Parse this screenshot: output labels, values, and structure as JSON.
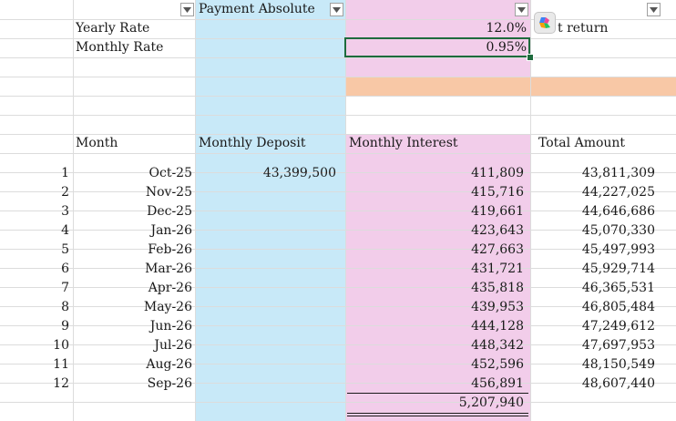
{
  "header": {
    "col_b_title": "Payment Absolute",
    "col_e_partial": "t return"
  },
  "labels": {
    "yearly_rate": "Yearly Rate",
    "monthly_rate": "Monthly Rate"
  },
  "rates": {
    "yearly": "12.0%",
    "monthly": "0.95%"
  },
  "table": {
    "headers": {
      "month": "Month",
      "monthly_deposit": "Monthly Deposit",
      "monthly_interest": "Monthly Interest",
      "total_amount": "Total Amount"
    },
    "rows": [
      {
        "n": "1",
        "month": "Oct-25",
        "deposit": "43,399,500",
        "interest": "411,809",
        "total": "43,811,309"
      },
      {
        "n": "2",
        "month": "Nov-25",
        "deposit": "",
        "interest": "415,716",
        "total": "44,227,025"
      },
      {
        "n": "3",
        "month": "Dec-25",
        "deposit": "",
        "interest": "419,661",
        "total": "44,646,686"
      },
      {
        "n": "4",
        "month": "Jan-26",
        "deposit": "",
        "interest": "423,643",
        "total": "45,070,330"
      },
      {
        "n": "5",
        "month": "Feb-26",
        "deposit": "",
        "interest": "427,663",
        "total": "45,497,993"
      },
      {
        "n": "6",
        "month": "Mar-26",
        "deposit": "",
        "interest": "431,721",
        "total": "45,929,714"
      },
      {
        "n": "7",
        "month": "Apr-26",
        "deposit": "",
        "interest": "435,818",
        "total": "46,365,531"
      },
      {
        "n": "8",
        "month": "May-26",
        "deposit": "",
        "interest": "439,953",
        "total": "46,805,484"
      },
      {
        "n": "9",
        "month": "Jun-26",
        "deposit": "",
        "interest": "444,128",
        "total": "47,249,612"
      },
      {
        "n": "10",
        "month": "Jul-26",
        "deposit": "",
        "interest": "448,342",
        "total": "47,697,953"
      },
      {
        "n": "11",
        "month": "Aug-26",
        "deposit": "",
        "interest": "452,596",
        "total": "48,150,549"
      },
      {
        "n": "12",
        "month": "Sep-26",
        "deposit": "",
        "interest": "456,891",
        "total": "48,607,440"
      }
    ],
    "interest_total": "5,207,940"
  },
  "colors": {
    "blue_column": "#c8e9f8",
    "pink_column": "#f2cdea",
    "orange_band": "#f8c8a6",
    "selection": "#1e6b3d"
  },
  "icons": {
    "filter": "filter-dropdown-icon",
    "copilot": "copilot-icon"
  }
}
